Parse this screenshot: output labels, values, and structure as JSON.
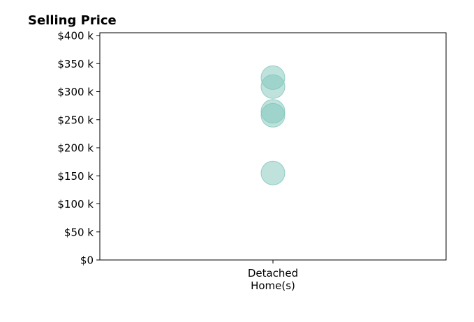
{
  "chart_data": {
    "type": "scatter",
    "title": "Selling Price",
    "xlabel": "",
    "ylabel": "",
    "categories": [
      "Detached\nHome(s)"
    ],
    "ylim": [
      0,
      405000
    ],
    "yticks": [
      0,
      50000,
      100000,
      150000,
      200000,
      250000,
      300000,
      350000,
      400000
    ],
    "ytick_labels": [
      "$0",
      "$50 k",
      "$100 k",
      "$150 k",
      "$200 k",
      "$250 k",
      "$300 k",
      "$350 k",
      "$400 k"
    ],
    "grid": false,
    "legend": "none",
    "marker_color": "#7fc6bc",
    "points": [
      {
        "category": "Detached\nHome(s)",
        "y": 325000
      },
      {
        "category": "Detached\nHome(s)",
        "y": 309000
      },
      {
        "category": "Detached\nHome(s)",
        "y": 265000
      },
      {
        "category": "Detached\nHome(s)",
        "y": 258000
      },
      {
        "category": "Detached\nHome(s)",
        "y": 155000
      }
    ]
  }
}
